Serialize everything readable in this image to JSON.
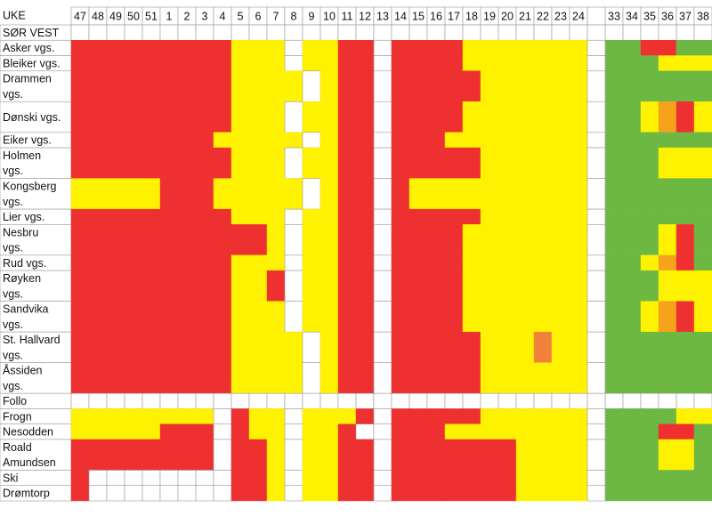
{
  "table": {
    "corner": "UKE",
    "weeks": [
      "47",
      "48",
      "49",
      "50",
      "51",
      "1",
      "2",
      "3",
      "4",
      "5",
      "6",
      "7",
      "8",
      "9",
      "10",
      "11",
      "12",
      "13",
      "14",
      "15",
      "16",
      "17",
      "18",
      "19",
      "20",
      "21",
      "22",
      "23",
      "24",
      "33",
      "34",
      "35",
      "36",
      "37",
      "38"
    ],
    "colors": {
      "R": "#ee3130",
      "Y": "#fff200",
      "W": "#ffffff",
      "G": "#6cb843",
      "O": "#f7a21b",
      "D": "#f0823c"
    },
    "rows": [
      {
        "label": [
          "SØR VEST"
        ]
      },
      {
        "label": [
          "Asker vgs."
        ],
        "cells": "RRRRRRRRRYYYWYYRRWRRRRYYYYYYYGGRRGG"
      },
      {
        "label": [
          "Bleiker vgs."
        ],
        "cells": "RRRRRRRRRYYYWYYRRWRRRRYYYYYYYGGGYYY"
      },
      {
        "label": [
          "Drammen",
          "vgs."
        ],
        "cells": "RRRRRRRRRYYYYWYRRWRRRRRYYYYYYGGGGGG"
      },
      {
        "label": [
          "Dønski vgs."
        ],
        "cells": "RRRRRRRRRYYYWYYRRWRRRRYYYYYYYGGYORY",
        "span": 2
      },
      {
        "label": [
          "Eiker vgs."
        ],
        "cells": "RRRRRRRRYYYYYWYRRWRRRYYYYYYYYGGGGGG"
      },
      {
        "label": [
          "Holmen",
          "vgs."
        ],
        "cells": "RRRRRRRRRYYYWYYRRWRRRRRYYYYYYGGGYYY"
      },
      {
        "label": [
          "Kongsberg",
          "vgs."
        ],
        "cells": "YYYYYRRRYYYYYWYRRWRYYYYYYYYYYGGGGGG"
      },
      {
        "label": [
          "Lier vgs."
        ],
        "cells": "RRRRRRRRRYYYWYYRRWRRRRRYYYYYYGGGGGG"
      },
      {
        "label": [
          "Nesbru",
          "vgs."
        ],
        "cells": "RRRRRRRRRRRYWYYRRWRRRRYYYYYYYGGGYRG"
      },
      {
        "label": [
          "Rud vgs."
        ],
        "cells": "RRRRRRRRRYYYWYYRRWRRRRYYYYYYYGGYORG"
      },
      {
        "label": [
          "Røyken",
          "vgs."
        ],
        "cells": "RRRRRRRRRYYRWYYRRWRRRRYYYYYYYGGGYYY"
      },
      {
        "label": [
          "Sandvika",
          "vgs."
        ],
        "cells": "RRRRRRRRRYYYWYYRRWRRRRYYYYYYYGGYORY"
      },
      {
        "label": [
          "St. Hallvard",
          "vgs."
        ],
        "cells": "RRRRRRRRRYYYYWYRRWRRRRRYYYDYYGGGGGG"
      },
      {
        "label": [
          "Åssiden",
          "vgs."
        ],
        "cells": "RRRRRRRRRYYYYWYRRWRRRRRYYYYYYGGGGGG"
      },
      {
        "label": [
          "Follo"
        ]
      },
      {
        "label": [
          "Frogn"
        ],
        "cells": "YYYYYYYYWRYYWYYYRWRRRRRYYYYYYGGGGYY"
      },
      {
        "label": [
          "Nesodden"
        ],
        "cells": "YYYYYRRRWRYYWYYRWWRRRYYYYYYYYGGGRRG"
      },
      {
        "label": [
          "Roald",
          "Amundsen"
        ],
        "cells": "RRRRRRRRWRRYWYYRRWRRRRRRRYYYYGGGYYG"
      },
      {
        "label": [
          "Ski"
        ],
        "cells": "RWWWWWWWWRRYWYYRRWRRRRRRRYYYYGGGGGG"
      },
      {
        "label": [
          "Drømtorp"
        ],
        "cells": "RWWWWWWWWRRYWYYRRWRRRRRRRYYYYGGGGGG"
      }
    ]
  }
}
